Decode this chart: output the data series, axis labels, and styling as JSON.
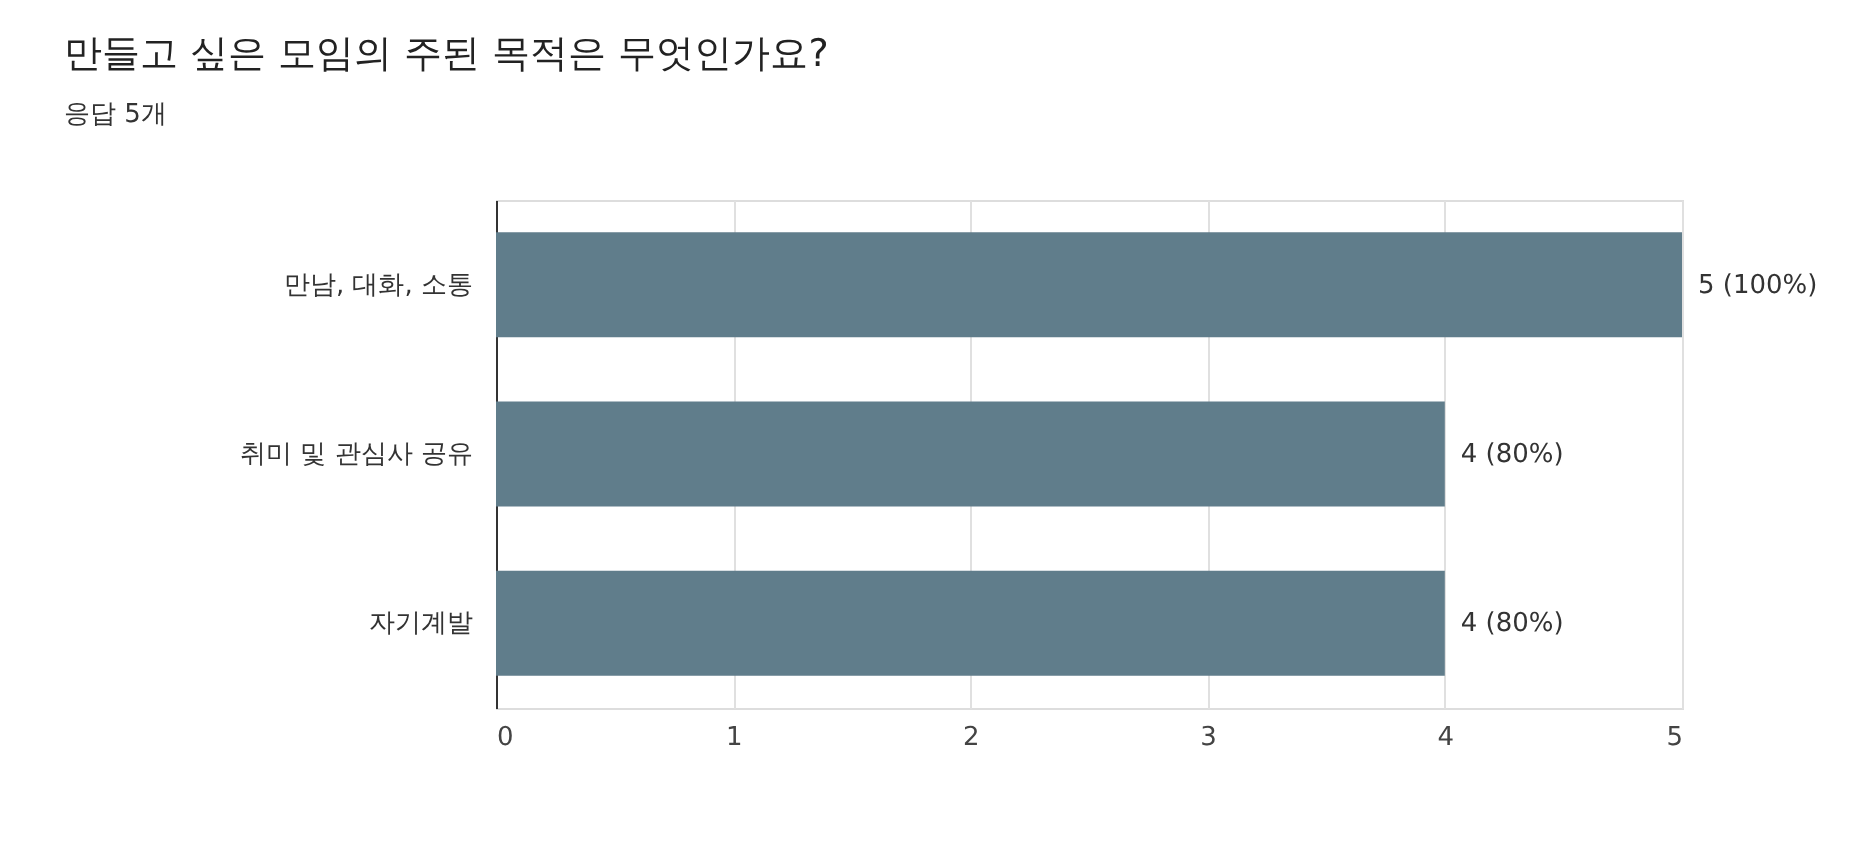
{
  "chart_data": {
    "type": "bar",
    "orientation": "horizontal",
    "title": "만들고 싶은 모임의 주된 목적은 무엇인가요?",
    "subtitle": "응답 5개",
    "categories": [
      "만남, 대화, 소통",
      "취미 및 관심사 공유",
      "자기계발"
    ],
    "values": [
      5,
      4,
      4
    ],
    "color": "#607d8b",
    "value_labels": [
      "5 (100%)",
      "4 (80%)",
      "4 (80%)"
    ],
    "xlim": [
      0,
      5
    ],
    "xticks": [
      0,
      1,
      2,
      3,
      4,
      5
    ],
    "grid": "x"
  }
}
